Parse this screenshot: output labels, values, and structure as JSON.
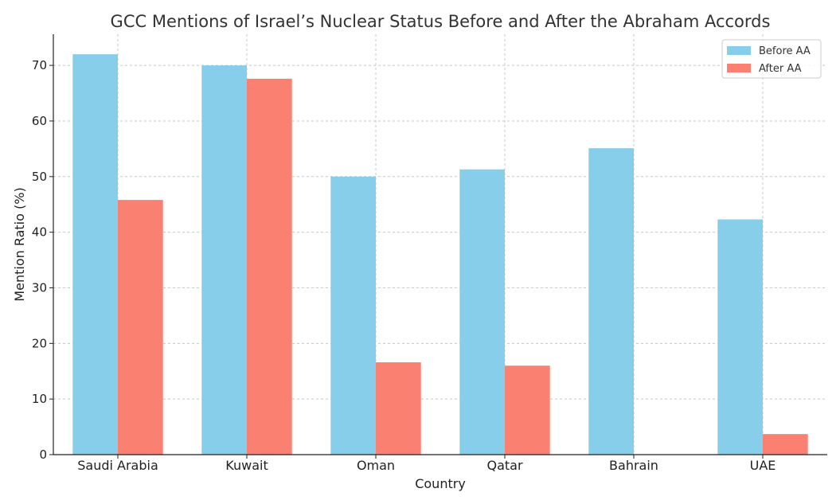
{
  "chart_data": {
    "type": "bar",
    "title": "GCC Mentions of Israel’s Nuclear Status Before and After the Abraham Accords",
    "xlabel": "Country",
    "ylabel": "Mention Ratio (%)",
    "categories": [
      "Saudi Arabia",
      "Kuwait",
      "Oman",
      "Qatar",
      "Bahrain",
      "UAE"
    ],
    "series": [
      {
        "name": "Before AA",
        "color": "#87CEEB",
        "values": [
          72.0,
          70.0,
          50.0,
          51.3,
          55.1,
          42.3
        ]
      },
      {
        "name": "After AA",
        "color": "#FA8072",
        "values": [
          45.8,
          67.6,
          16.6,
          16.0,
          0,
          3.7
        ]
      }
    ],
    "ylim": [
      0,
      75.6
    ],
    "yticks": [
      0,
      10,
      20,
      30,
      40,
      50,
      60,
      70
    ],
    "grid": true,
    "legend_position": "top-right"
  }
}
